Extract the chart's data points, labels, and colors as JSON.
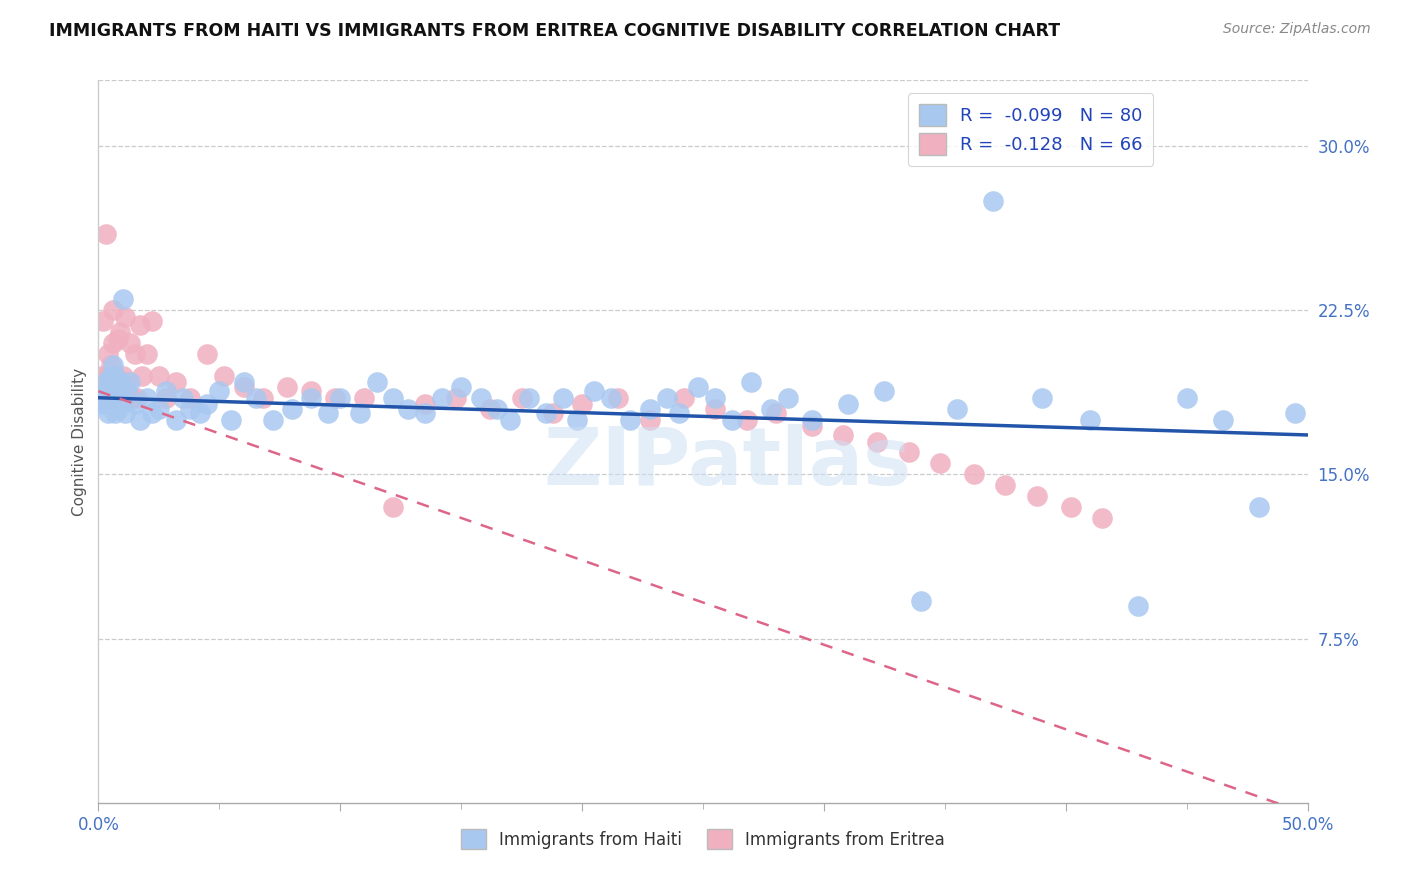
{
  "title": "IMMIGRANTS FROM HAITI VS IMMIGRANTS FROM ERITREA COGNITIVE DISABILITY CORRELATION CHART",
  "source": "Source: ZipAtlas.com",
  "ylabel": "Cognitive Disability",
  "xlim": [
    0.0,
    0.5
  ],
  "ylim": [
    0.0,
    0.33
  ],
  "haiti_color": "#a8c8f0",
  "eritrea_color": "#f0b0c0",
  "haiti_R": -0.099,
  "haiti_N": 80,
  "eritrea_R": -0.128,
  "eritrea_N": 66,
  "haiti_line_color": "#2255aa",
  "eritrea_line_color": "#dd6688",
  "watermark": "ZIPatlas",
  "haiti_line_start_y": 0.185,
  "haiti_line_end_y": 0.168,
  "eritrea_line_start_y": 0.188,
  "eritrea_line_end_y": -0.005,
  "y_ticks_right": [
    0.075,
    0.15,
    0.225,
    0.3
  ],
  "y_tick_labels_right": [
    "7.5%",
    "15.0%",
    "22.5%",
    "30.0%"
  ],
  "haiti_x": [
    0.001,
    0.002,
    0.002,
    0.003,
    0.003,
    0.004,
    0.004,
    0.005,
    0.005,
    0.006,
    0.006,
    0.007,
    0.007,
    0.008,
    0.008,
    0.009,
    0.01,
    0.01,
    0.011,
    0.012,
    0.013,
    0.015,
    0.017,
    0.02,
    0.022,
    0.025,
    0.028,
    0.032,
    0.035,
    0.038,
    0.042,
    0.045,
    0.05,
    0.055,
    0.06,
    0.065,
    0.072,
    0.08,
    0.088,
    0.095,
    0.1,
    0.108,
    0.115,
    0.122,
    0.128,
    0.135,
    0.142,
    0.15,
    0.158,
    0.165,
    0.17,
    0.178,
    0.185,
    0.192,
    0.198,
    0.205,
    0.212,
    0.22,
    0.228,
    0.235,
    0.24,
    0.248,
    0.255,
    0.262,
    0.27,
    0.278,
    0.285,
    0.295,
    0.31,
    0.325,
    0.34,
    0.355,
    0.37,
    0.39,
    0.41,
    0.43,
    0.45,
    0.465,
    0.48,
    0.495
  ],
  "haiti_y": [
    0.185,
    0.186,
    0.182,
    0.188,
    0.192,
    0.178,
    0.183,
    0.19,
    0.195,
    0.2,
    0.188,
    0.178,
    0.195,
    0.185,
    0.18,
    0.192,
    0.185,
    0.23,
    0.178,
    0.188,
    0.192,
    0.182,
    0.175,
    0.185,
    0.178,
    0.18,
    0.188,
    0.175,
    0.185,
    0.18,
    0.178,
    0.182,
    0.188,
    0.175,
    0.192,
    0.185,
    0.175,
    0.18,
    0.185,
    0.178,
    0.185,
    0.178,
    0.192,
    0.185,
    0.18,
    0.178,
    0.185,
    0.19,
    0.185,
    0.18,
    0.175,
    0.185,
    0.178,
    0.185,
    0.175,
    0.188,
    0.185,
    0.175,
    0.18,
    0.185,
    0.178,
    0.19,
    0.185,
    0.175,
    0.192,
    0.18,
    0.185,
    0.175,
    0.182,
    0.188,
    0.092,
    0.18,
    0.275,
    0.185,
    0.175,
    0.09,
    0.185,
    0.175,
    0.135,
    0.178
  ],
  "eritrea_x": [
    0.001,
    0.001,
    0.002,
    0.002,
    0.003,
    0.003,
    0.004,
    0.004,
    0.005,
    0.005,
    0.006,
    0.006,
    0.007,
    0.007,
    0.008,
    0.008,
    0.009,
    0.009,
    0.01,
    0.01,
    0.011,
    0.011,
    0.012,
    0.013,
    0.014,
    0.015,
    0.016,
    0.017,
    0.018,
    0.02,
    0.022,
    0.025,
    0.028,
    0.032,
    0.038,
    0.045,
    0.052,
    0.06,
    0.068,
    0.078,
    0.088,
    0.098,
    0.11,
    0.122,
    0.135,
    0.148,
    0.162,
    0.175,
    0.188,
    0.2,
    0.215,
    0.228,
    0.242,
    0.255,
    0.268,
    0.28,
    0.295,
    0.308,
    0.322,
    0.335,
    0.348,
    0.362,
    0.375,
    0.388,
    0.402,
    0.415
  ],
  "eritrea_y": [
    0.195,
    0.185,
    0.22,
    0.185,
    0.26,
    0.195,
    0.205,
    0.185,
    0.2,
    0.185,
    0.225,
    0.21,
    0.195,
    0.185,
    0.212,
    0.19,
    0.185,
    0.215,
    0.195,
    0.188,
    0.222,
    0.185,
    0.192,
    0.21,
    0.185,
    0.205,
    0.185,
    0.218,
    0.195,
    0.205,
    0.22,
    0.195,
    0.185,
    0.192,
    0.185,
    0.205,
    0.195,
    0.19,
    0.185,
    0.19,
    0.188,
    0.185,
    0.185,
    0.135,
    0.182,
    0.185,
    0.18,
    0.185,
    0.178,
    0.182,
    0.185,
    0.175,
    0.185,
    0.18,
    0.175,
    0.178,
    0.172,
    0.168,
    0.165,
    0.16,
    0.155,
    0.15,
    0.145,
    0.14,
    0.135,
    0.13
  ]
}
